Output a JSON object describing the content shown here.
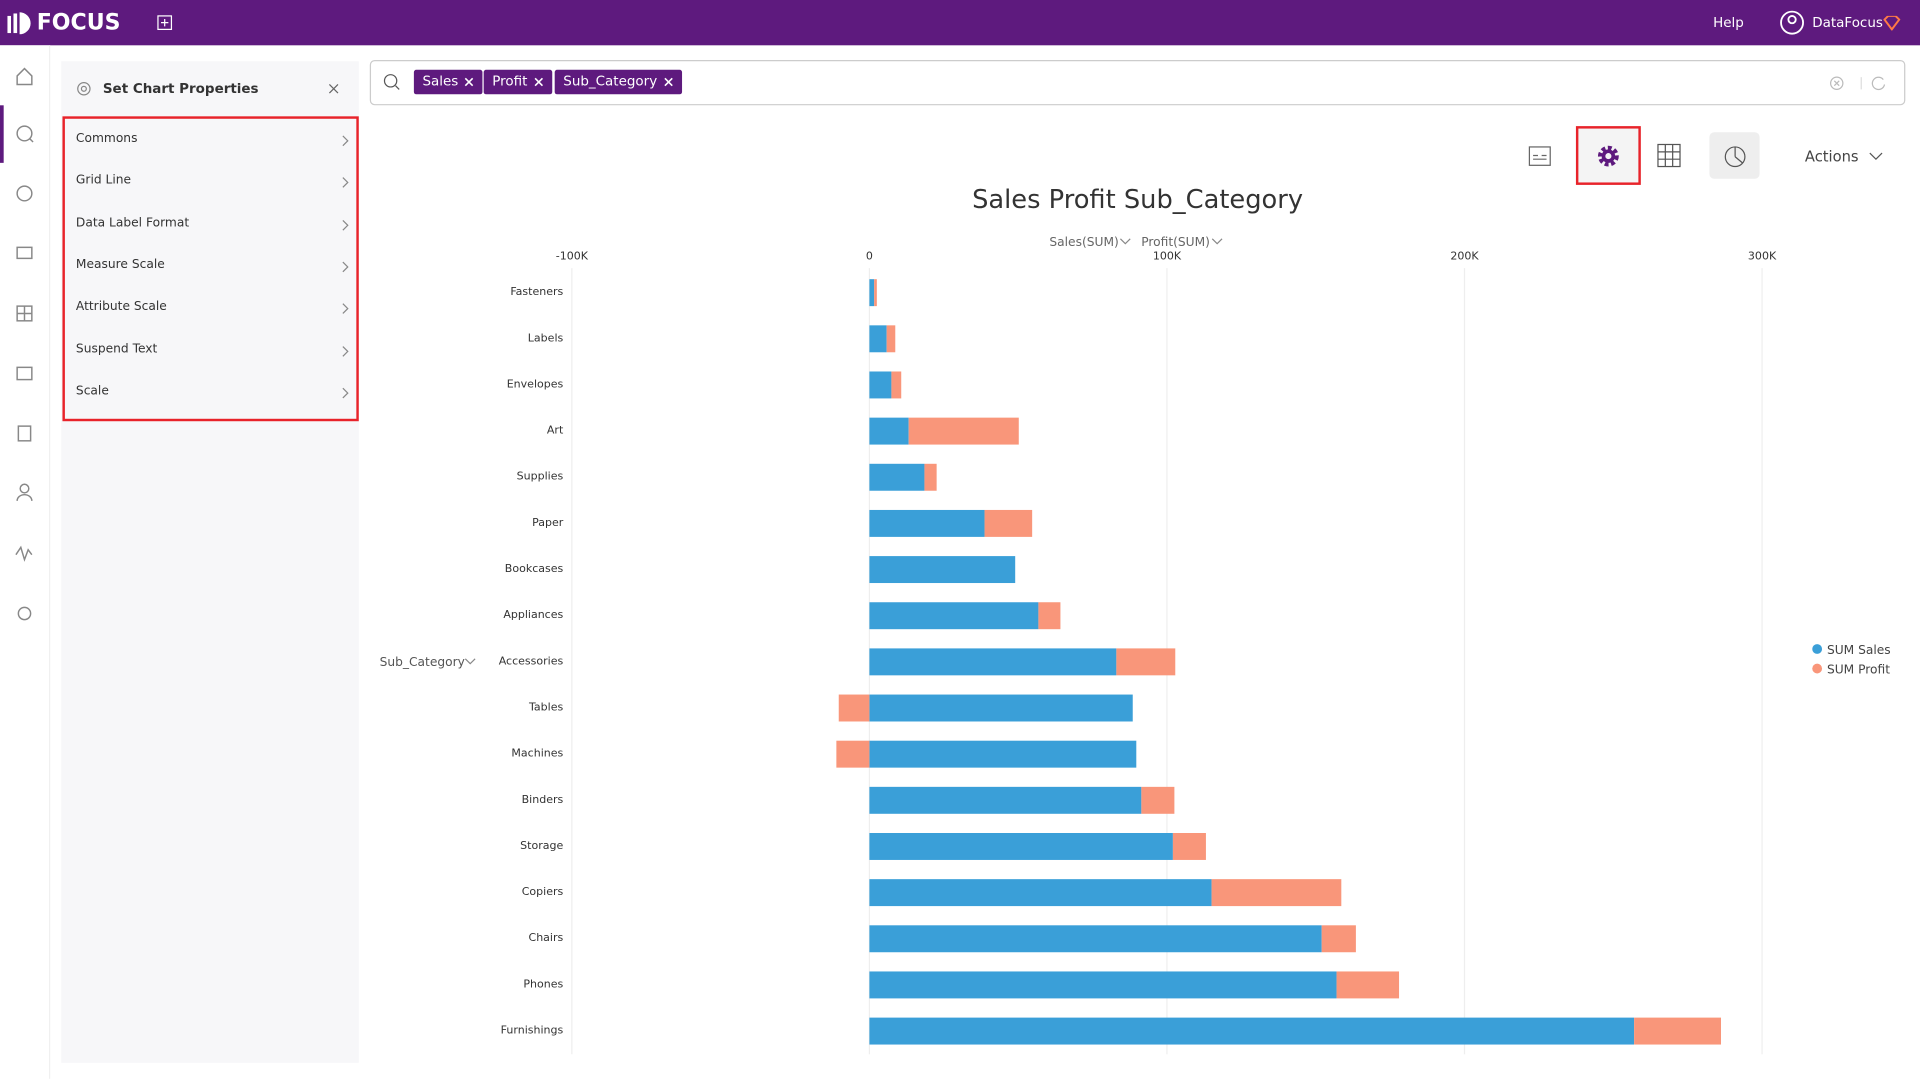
{
  "header": {
    "logo": "FOCUS",
    "help": "Help",
    "user": "DataFocus"
  },
  "panel": {
    "title": "Set Chart Properties",
    "items": [
      "Commons",
      "Grid Line",
      "Data Label Format",
      "Measure Scale",
      "Attribute Scale",
      "Suspend Text",
      "Scale"
    ]
  },
  "search": {
    "tokens": [
      "Sales",
      "Profit",
      "Sub_Category"
    ]
  },
  "toolbar": {
    "actions": "Actions"
  },
  "chart_data": {
    "type": "bar",
    "orientation": "horizontal",
    "stacked": true,
    "title": "Sales Profit Sub_Category",
    "x_axis_labels": [
      "Sales(SUM)",
      "Profit(SUM)"
    ],
    "y_axis_label": "Sub_Category",
    "categories": [
      "Fasteners",
      "Labels",
      "Envelopes",
      "Art",
      "Supplies",
      "Paper",
      "Bookcases",
      "Appliances",
      "Accessories",
      "Tables",
      "Machines",
      "Binders",
      "Storage",
      "Copiers",
      "Chairs",
      "Phones",
      "Furnishings"
    ],
    "series": [
      {
        "name": "SUM Sales",
        "color": "#3a9fd8",
        "values": [
          1600,
          5800,
          7400,
          13200,
          18500,
          38700,
          49000,
          56800,
          83000,
          88500,
          89700,
          91400,
          102000,
          115000,
          152000,
          157000,
          257000
        ]
      },
      {
        "name": "SUM Profit",
        "color": "#f9967a",
        "values": [
          900,
          2900,
          3300,
          37000,
          4100,
          16000,
          0,
          7400,
          19800,
          -10300,
          -11100,
          11100,
          11100,
          43600,
          11500,
          21000,
          29200
        ]
      }
    ],
    "xlim": [
      -100000,
      300000
    ],
    "xticks": [
      {
        "value": -100000,
        "label": "-100K"
      },
      0,
      {
        "value": 100000,
        "label": "100K"
      },
      {
        "value": 200000,
        "label": "200K"
      },
      {
        "value": 300000,
        "label": "300K"
      }
    ],
    "grid": true,
    "legend": "right"
  }
}
